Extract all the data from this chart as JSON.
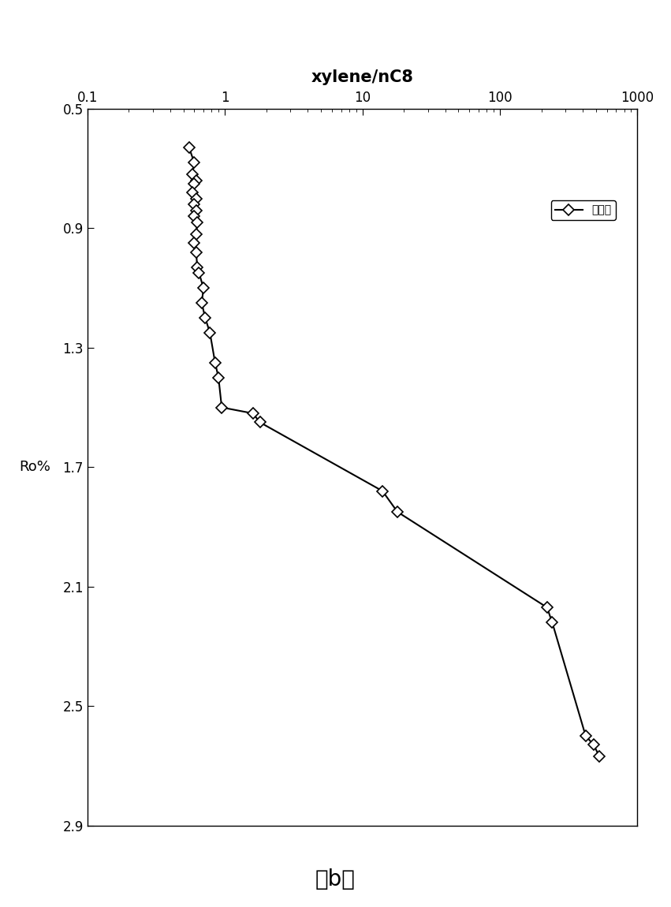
{
  "title_x": "xylene/nC8",
  "ylabel": "Ro%",
  "label": "模拟値",
  "subtitle": "（b）",
  "xlim": [
    0.1,
    1000
  ],
  "ylim": [
    0.5,
    2.9
  ],
  "x_ticks": [
    0.1,
    1,
    10,
    100,
    1000
  ],
  "y_ticks": [
    0.5,
    0.9,
    1.3,
    1.7,
    2.1,
    2.5,
    2.9
  ],
  "data_x": [
    0.55,
    0.6,
    0.58,
    0.62,
    0.6,
    0.58,
    0.62,
    0.6,
    0.62,
    0.6,
    0.63,
    0.62,
    0.6,
    0.62,
    0.63,
    0.65,
    0.7,
    0.68,
    0.72,
    0.78,
    0.85,
    0.9,
    0.95,
    1.6,
    1.8,
    14.0,
    18.0,
    220.0,
    240.0,
    420.0,
    480.0,
    530.0
  ],
  "data_y": [
    0.63,
    0.68,
    0.72,
    0.74,
    0.75,
    0.78,
    0.8,
    0.82,
    0.84,
    0.86,
    0.88,
    0.92,
    0.95,
    0.98,
    1.03,
    1.05,
    1.1,
    1.15,
    1.2,
    1.25,
    1.35,
    1.4,
    1.5,
    1.52,
    1.55,
    1.78,
    1.85,
    2.17,
    2.22,
    2.6,
    2.63,
    2.67
  ],
  "line_color": "black",
  "marker": "D",
  "marker_size": 7,
  "marker_facecolor": "white",
  "marker_edgecolor": "black",
  "background_color": "white"
}
